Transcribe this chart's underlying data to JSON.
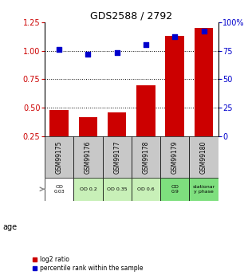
{
  "title": "GDS2588 / 2792",
  "samples": [
    "GSM99175",
    "GSM99176",
    "GSM99177",
    "GSM99178",
    "GSM99179",
    "GSM99180"
  ],
  "log2_ratio": [
    0.48,
    0.42,
    0.46,
    0.7,
    1.13,
    1.2
  ],
  "percentile_rank": [
    76,
    72,
    73,
    80,
    87,
    92
  ],
  "bar_color": "#cc0000",
  "dot_color": "#0000cc",
  "ylim_left": [
    0.25,
    1.25
  ],
  "ylim_right": [
    0,
    100
  ],
  "yticks_left": [
    0.25,
    0.5,
    0.75,
    1.0,
    1.25
  ],
  "yticks_right": [
    0,
    25,
    50,
    75,
    100
  ],
  "hlines": [
    0.5,
    0.75,
    1.0
  ],
  "age_labels": [
    "OD\n0.03",
    "OD 0.2",
    "OD 0.35",
    "OD 0.6",
    "OD\n0.9",
    "stationar\ny phase"
  ],
  "age_bg_colors": [
    "#ffffff",
    "#c8f0b8",
    "#c8f0b8",
    "#c8f0b8",
    "#7edf7e",
    "#7edf7e"
  ],
  "sample_bg_color": "#c8c8c8",
  "legend_bar_label": "log2 ratio",
  "legend_dot_label": "percentile rank within the sample",
  "age_label": "age"
}
